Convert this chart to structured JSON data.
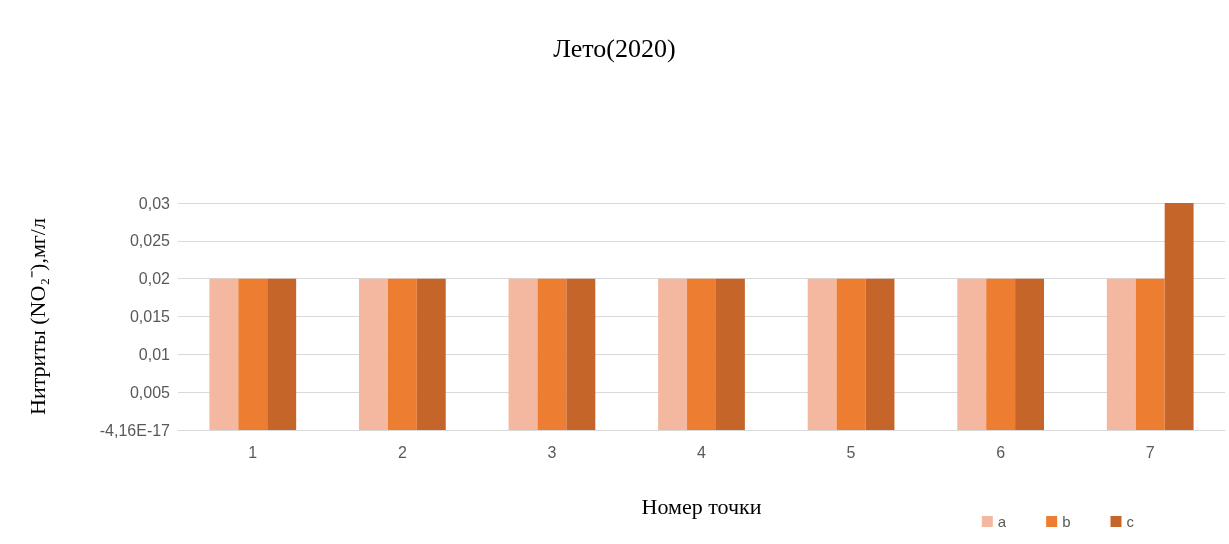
{
  "chart_data": {
    "type": "bar",
    "title": "Лето(2020)",
    "xlabel": "Номер точки",
    "ylabel": "Нитриты (NO₂⁻),мг/л",
    "categories": [
      "1",
      "2",
      "3",
      "4",
      "5",
      "6",
      "7"
    ],
    "series": [
      {
        "name": "a",
        "color": "#f4b8a0",
        "values": [
          0.02,
          0.02,
          0.02,
          0.02,
          0.02,
          0.02,
          0.02
        ]
      },
      {
        "name": "b",
        "color": "#ed7d31",
        "values": [
          0.02,
          0.02,
          0.02,
          0.02,
          0.02,
          0.02,
          0.02
        ]
      },
      {
        "name": "c",
        "color": "#c5652a",
        "values": [
          0.02,
          0.02,
          0.02,
          0.02,
          0.02,
          0.02,
          0.03
        ]
      }
    ],
    "ylim": [
      0,
      0.03
    ],
    "yticks": [
      {
        "value": 0,
        "label": "-4,16E-17"
      },
      {
        "value": 0.005,
        "label": "0,005"
      },
      {
        "value": 0.01,
        "label": "0,01"
      },
      {
        "value": 0.015,
        "label": "0,015"
      },
      {
        "value": 0.02,
        "label": "0,02"
      },
      {
        "value": 0.025,
        "label": "0,025"
      },
      {
        "value": 0.03,
        "label": "0,03"
      }
    ],
    "grid": "y",
    "legend": "bottom right"
  }
}
